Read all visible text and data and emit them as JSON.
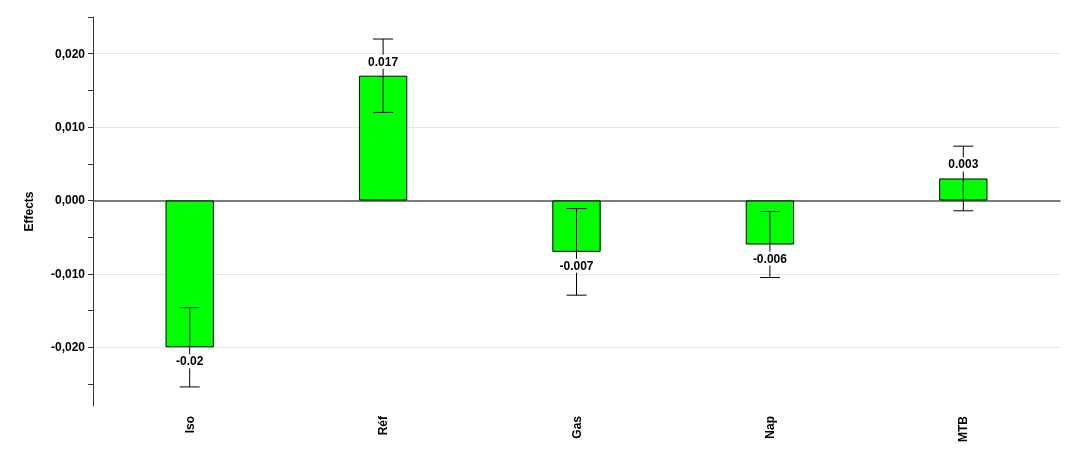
{
  "chart_data": {
    "type": "bar",
    "ylabel": "Effects",
    "categories": [
      "Iso",
      "Réf",
      "Gas",
      "Nap",
      "MTB"
    ],
    "values": [
      -0.02,
      0.017,
      -0.007,
      -0.006,
      0.003
    ],
    "errors": [
      0.0054,
      0.005,
      0.0059,
      0.0045,
      0.0044
    ],
    "data_labels": true,
    "color": "#00ff00",
    "ylim": [
      -0.028,
      0.025
    ],
    "yticks": [
      {
        "value": -0.025,
        "label": null
      },
      {
        "value": -0.02,
        "label": "-0,020"
      },
      {
        "value": -0.015,
        "label": null
      },
      {
        "value": -0.01,
        "label": "-0,010"
      },
      {
        "value": -0.005,
        "label": null
      },
      {
        "value": 0,
        "label": "0,000"
      },
      {
        "value": 0.005,
        "label": null
      },
      {
        "value": 0.01,
        "label": "0,010"
      },
      {
        "value": 0.015,
        "label": null
      },
      {
        "value": 0.02,
        "label": "0,020"
      },
      {
        "value": 0.025,
        "label": null
      }
    ],
    "grid": "y"
  }
}
